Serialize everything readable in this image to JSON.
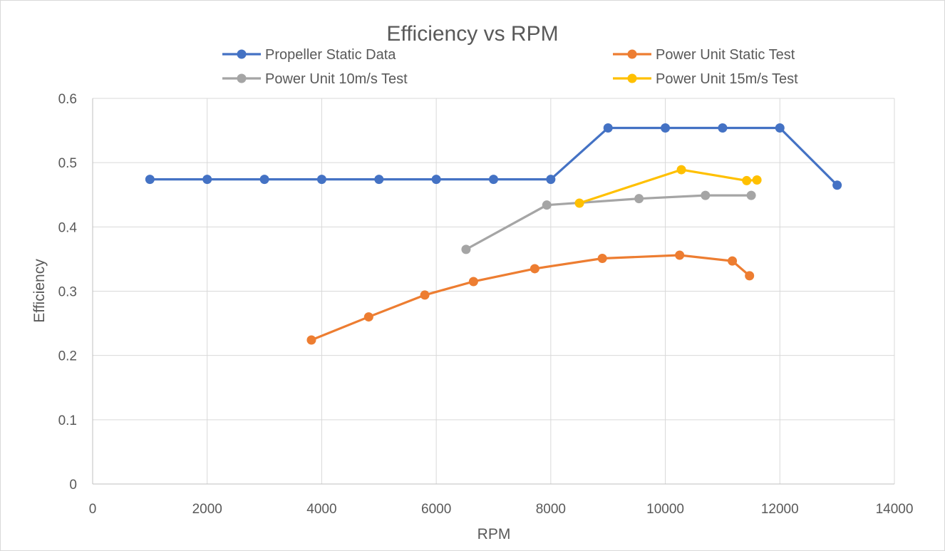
{
  "chart_data": {
    "type": "line",
    "title": "Efficiency vs RPM",
    "xlabel": "RPM",
    "ylabel": "Efficiency",
    "xlim": [
      0,
      14000
    ],
    "ylim": [
      0,
      0.6
    ],
    "x_ticks": [
      0,
      2000,
      4000,
      6000,
      8000,
      10000,
      12000,
      14000
    ],
    "y_ticks": [
      0,
      0.1,
      0.2,
      0.3,
      0.4,
      0.5,
      0.6
    ],
    "x_tick_labels": [
      "0",
      "2000",
      "4000",
      "6000",
      "8000",
      "10000",
      "12000",
      "14000"
    ],
    "y_tick_labels": [
      "0",
      "0.1",
      "0.2",
      "0.3",
      "0.4",
      "0.5",
      "0.6"
    ],
    "grid": true,
    "legend_position": "top",
    "series": [
      {
        "name": "Propeller Static Data",
        "color": "#4472c4",
        "points": [
          [
            1000,
            0.474
          ],
          [
            2000,
            0.474
          ],
          [
            3000,
            0.474
          ],
          [
            4000,
            0.474
          ],
          [
            5000,
            0.474
          ],
          [
            6000,
            0.474
          ],
          [
            7000,
            0.474
          ],
          [
            8000,
            0.474
          ],
          [
            9000,
            0.554
          ],
          [
            10000,
            0.554
          ],
          [
            11000,
            0.554
          ],
          [
            12000,
            0.554
          ],
          [
            13000,
            0.465
          ]
        ]
      },
      {
        "name": "Power Unit Static Test",
        "color": "#ed7d31",
        "points": [
          [
            3820,
            0.224
          ],
          [
            4820,
            0.26
          ],
          [
            5800,
            0.294
          ],
          [
            6650,
            0.315
          ],
          [
            7720,
            0.335
          ],
          [
            8900,
            0.351
          ],
          [
            10250,
            0.356
          ],
          [
            11170,
            0.347
          ],
          [
            11470,
            0.324
          ]
        ]
      },
      {
        "name": "Power Unit 10m/s Test",
        "color": "#a5a5a5",
        "points": [
          [
            6520,
            0.365
          ],
          [
            7930,
            0.434
          ],
          [
            9540,
            0.444
          ],
          [
            10700,
            0.449
          ],
          [
            11500,
            0.449
          ]
        ]
      },
      {
        "name": "Power Unit 15m/s Test",
        "color": "#ffc000",
        "points": [
          [
            8500,
            0.437
          ],
          [
            10280,
            0.489
          ],
          [
            11420,
            0.472
          ],
          [
            11600,
            0.473
          ]
        ]
      }
    ]
  }
}
